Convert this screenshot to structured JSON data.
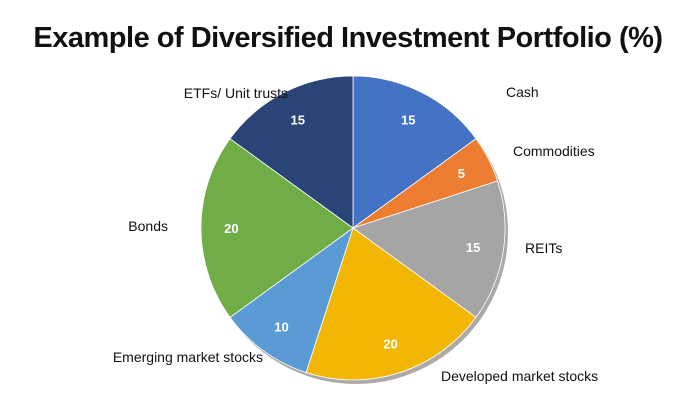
{
  "chart_data": {
    "type": "pie",
    "title": "Example of Diversified Investment Portfolio (%)",
    "categories": [
      "Cash",
      "Commodities",
      "REITs",
      "Developed market stocks",
      "Emerging market stocks",
      "Bonds",
      "ETFs/ Unit trusts"
    ],
    "values": [
      15,
      5,
      15,
      20,
      10,
      20,
      15
    ],
    "colors": [
      "#4472C4",
      "#ED7D31",
      "#A5A5A5",
      "#F2B705",
      "#5B9BD5",
      "#70AD47",
      "#2A4478"
    ],
    "start": "top",
    "direction": "clockwise",
    "legend": "none (outside labels)"
  }
}
